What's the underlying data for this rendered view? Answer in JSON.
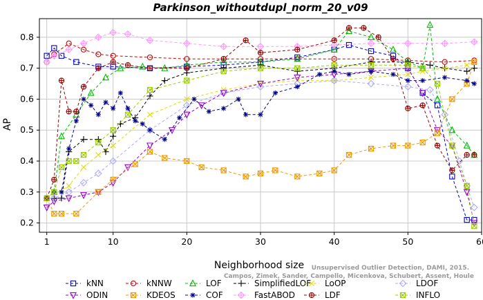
{
  "chart_data": {
    "type": "line",
    "title": "Parkinson_withoutdupl_norm_20_v09",
    "xlabel": "Neighborhood size",
    "ylabel": "AP",
    "xlim": [
      0,
      60
    ],
    "ylim": [
      0.17,
      0.86
    ],
    "xticks": [
      1,
      10,
      20,
      30,
      40,
      50,
      60
    ],
    "yticks": [
      0.2,
      0.3,
      0.4,
      0.5,
      0.6,
      0.7,
      0.8
    ],
    "grid": true,
    "legend_position": "bottom",
    "credit_lines": [
      "Unsupervised Outlier Detection, DAMI, 2015.",
      "Campos, Zimek, Sander, Campello, Micenkova, Schubert, Assent, Houle"
    ],
    "series": [
      {
        "name": "kNN",
        "color": "#0000cc",
        "marker": "square",
        "dashed": true,
        "x": [
          1,
          2,
          3,
          5,
          8,
          10,
          15,
          20,
          25,
          30,
          35,
          40,
          42,
          45,
          48,
          50,
          52,
          54,
          56,
          58,
          59
        ],
        "y": [
          0.74,
          0.765,
          0.74,
          0.72,
          0.705,
          0.705,
          0.7,
          0.705,
          0.71,
          0.72,
          0.735,
          0.76,
          0.775,
          0.755,
          0.74,
          0.7,
          0.62,
          0.58,
          0.35,
          0.21,
          0.21
        ]
      },
      {
        "name": "kNNW",
        "color": "#cc0000",
        "marker": "circle",
        "dashed": true,
        "x": [
          1,
          2,
          4,
          6,
          8,
          10,
          15,
          20,
          25,
          30,
          35,
          40,
          45,
          50,
          55,
          59
        ],
        "y": [
          0.72,
          0.745,
          0.78,
          0.76,
          0.745,
          0.74,
          0.735,
          0.73,
          0.73,
          0.73,
          0.73,
          0.73,
          0.73,
          0.725,
          0.72,
          0.725
        ]
      },
      {
        "name": "LOF",
        "color": "#00bb00",
        "marker": "triangle-up",
        "dashed": true,
        "x": [
          1,
          2,
          3,
          5,
          7,
          9,
          11,
          14,
          17,
          20,
          25,
          30,
          35,
          40,
          42,
          45,
          48,
          50,
          52,
          53,
          54,
          56,
          58,
          59
        ],
        "y": [
          0.28,
          0.3,
          0.48,
          0.55,
          0.62,
          0.67,
          0.7,
          0.705,
          0.7,
          0.71,
          0.72,
          0.72,
          0.73,
          0.76,
          0.82,
          0.8,
          0.76,
          0.72,
          0.7,
          0.84,
          0.6,
          0.5,
          0.45,
          0.42
        ]
      },
      {
        "name": "SimplifiedLOF",
        "color": "#000000",
        "marker": "plus",
        "dashed": true,
        "x": [
          1,
          2,
          3,
          4,
          6,
          8,
          9,
          10,
          11,
          13,
          15,
          17,
          20,
          25,
          30,
          35,
          40,
          45,
          50,
          53,
          55,
          58,
          59
        ],
        "y": [
          0.28,
          0.28,
          0.28,
          0.43,
          0.47,
          0.47,
          0.43,
          0.48,
          0.52,
          0.54,
          0.61,
          0.66,
          0.685,
          0.7,
          0.71,
          0.69,
          0.7,
          0.72,
          0.72,
          0.71,
          0.7,
          0.69,
          0.7
        ]
      },
      {
        "name": "LoOP",
        "color": "#dddd00",
        "marker": "x",
        "dashed": true,
        "x": [
          1,
          2,
          4,
          6,
          8,
          10,
          15,
          20,
          25,
          30,
          35,
          40,
          45,
          50,
          52,
          55,
          58,
          59
        ],
        "y": [
          0.28,
          0.29,
          0.32,
          0.38,
          0.42,
          0.45,
          0.55,
          0.6,
          0.63,
          0.65,
          0.66,
          0.66,
          0.67,
          0.68,
          0.69,
          0.7,
          0.71,
          0.72
        ]
      },
      {
        "name": "LDOF",
        "color": "#aaaaff",
        "marker": "diamond",
        "dashed": true,
        "x": [
          1,
          2,
          4,
          6,
          8,
          10,
          15,
          20,
          25,
          30,
          35,
          40,
          45,
          50,
          53,
          55,
          57,
          58,
          59
        ],
        "y": [
          0.28,
          0.28,
          0.3,
          0.33,
          0.36,
          0.4,
          0.5,
          0.58,
          0.62,
          0.64,
          0.65,
          0.66,
          0.65,
          0.64,
          0.63,
          0.55,
          0.4,
          0.32,
          0.25
        ]
      },
      {
        "name": "ODIN",
        "color": "#9900cc",
        "marker": "triangle-down",
        "dashed": true,
        "x": [
          1,
          2,
          4,
          6,
          8,
          10,
          12,
          15,
          18,
          20,
          22,
          25,
          30,
          35,
          40,
          45,
          50,
          52,
          54,
          56,
          58,
          59
        ],
        "y": [
          0.25,
          0.27,
          0.28,
          0.29,
          0.3,
          0.33,
          0.38,
          0.45,
          0.5,
          0.55,
          0.58,
          0.62,
          0.65,
          0.67,
          0.68,
          0.69,
          0.7,
          0.62,
          0.5,
          0.45,
          0.3,
          0.2
        ]
      },
      {
        "name": "KDEOS",
        "color": "#ee9900",
        "marker": "square-x",
        "dashed": true,
        "x": [
          1,
          2,
          3,
          5,
          8,
          10,
          13,
          15,
          17,
          20,
          22,
          25,
          28,
          30,
          32,
          35,
          38,
          40,
          42,
          45,
          48,
          50,
          52,
          54,
          56,
          58,
          59
        ],
        "y": [
          0.28,
          0.23,
          0.23,
          0.23,
          0.3,
          0.34,
          0.39,
          0.43,
          0.41,
          0.4,
          0.38,
          0.37,
          0.35,
          0.36,
          0.37,
          0.35,
          0.36,
          0.37,
          0.42,
          0.44,
          0.45,
          0.45,
          0.46,
          0.49,
          0.6,
          0.65,
          0.72
        ]
      },
      {
        "name": "COF",
        "color": "#000088",
        "marker": "asterisk",
        "dashed": true,
        "x": [
          1,
          2,
          3,
          4,
          5,
          6,
          7,
          8,
          9,
          10,
          11,
          12,
          13,
          14,
          15,
          17,
          19,
          21,
          23,
          25,
          27,
          28,
          30,
          32,
          35,
          38,
          40,
          42,
          45,
          48,
          50,
          52,
          55,
          58,
          59
        ],
        "y": [
          0.28,
          0.3,
          0.3,
          0.44,
          0.53,
          0.6,
          0.58,
          0.55,
          0.59,
          0.57,
          0.62,
          0.57,
          0.53,
          0.52,
          0.5,
          0.47,
          0.54,
          0.6,
          0.56,
          0.57,
          0.6,
          0.55,
          0.55,
          0.62,
          0.64,
          0.68,
          0.69,
          0.68,
          0.69,
          0.68,
          0.66,
          0.66,
          0.67,
          0.66,
          0.65
        ]
      },
      {
        "name": "FastABOD",
        "color": "#ff99ff",
        "marker": "diamond-plus",
        "dashed": true,
        "x": [
          1,
          2,
          4,
          6,
          8,
          10,
          12,
          15,
          20,
          25,
          30,
          35,
          40,
          45,
          50,
          55,
          59
        ],
        "y": [
          0.72,
          0.74,
          0.76,
          0.78,
          0.8,
          0.815,
          0.81,
          0.79,
          0.78,
          0.77,
          0.77,
          0.77,
          0.775,
          0.78,
          0.78,
          0.78,
          0.785
        ]
      },
      {
        "name": "LDF",
        "color": "#990000",
        "marker": "circle-plus",
        "dashed": true,
        "x": [
          1,
          2,
          3,
          4,
          5,
          6,
          8,
          10,
          12,
          15,
          20,
          25,
          28,
          30,
          35,
          40,
          42,
          44,
          46,
          48,
          50,
          52,
          54,
          56,
          58,
          59
        ],
        "y": [
          0.28,
          0.34,
          0.66,
          0.56,
          0.56,
          0.64,
          0.7,
          0.72,
          0.71,
          0.7,
          0.7,
          0.73,
          0.79,
          0.75,
          0.76,
          0.79,
          0.83,
          0.83,
          0.8,
          0.73,
          0.57,
          0.58,
          0.45,
          0.37,
          0.42,
          0.42
        ]
      },
      {
        "name": "INFLO",
        "color": "#99cc00",
        "marker": "square-x",
        "dashed": true,
        "x": [
          1,
          2,
          3,
          4,
          5,
          6,
          8,
          10,
          12,
          15,
          20,
          25,
          30,
          35,
          40,
          45,
          50,
          52,
          54,
          56,
          58,
          59
        ],
        "y": [
          0.28,
          0.3,
          0.38,
          0.4,
          0.4,
          0.42,
          0.46,
          0.5,
          0.55,
          0.63,
          0.66,
          0.69,
          0.7,
          0.7,
          0.71,
          0.71,
          0.71,
          0.7,
          0.65,
          0.45,
          0.32,
          0.19
        ]
      }
    ],
    "legend": [
      {
        "row": 0,
        "items": [
          "kNN",
          "kNNW",
          "LOF",
          "SimplifiedLOF",
          "LoOP",
          "LDOF"
        ]
      },
      {
        "row": 1,
        "items": [
          "ODIN",
          "KDEOS",
          "COF",
          "FastABOD",
          "LDF",
          "INFLO"
        ]
      }
    ]
  }
}
